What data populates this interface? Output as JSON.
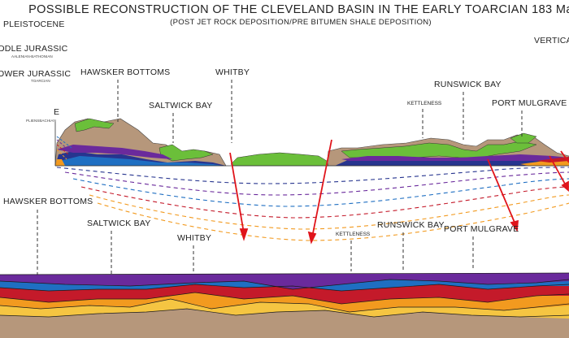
{
  "title": "POSSIBLE RECONSTRUCTION OF THE CLEVELAND BASIN IN THE EARLY TOARCIAN 183 Ma",
  "subtitle": "(POST JET ROCK DEPOSITION/PRE BITUMEN SHALE DEPOSITION)",
  "legend": {
    "pleistocene": "PLEISTOCENE",
    "middle_jurassic": "DDLE JURASSIC",
    "middle_jurassic_sub": "AALENIAN-BATHONIAN",
    "lower_jurassic": "OWER JURASSIC",
    "lower_jurassic_sub": "TOARCIAN",
    "e_mark": "E",
    "pliensbachian": "PLIENSBACHIAN",
    "vertical": "VERTICAL"
  },
  "upper_section_labels": {
    "hawsker_bottoms": "HAWSKER BOTTOMS",
    "whitby": "WHITBY",
    "saltwick_bay": "SALTWICK BAY",
    "runswick_bay": "RUNSWICK BAY",
    "kettleness": "KETTLENESS",
    "port_mulgrave": "PORT MULGRAVE"
  },
  "lower_section_labels": {
    "hawsker_bottoms": "HAWSKER BOTTOMS",
    "saltwick_bay": "SALTWICK BAY",
    "whitby": "WHITBY",
    "kettleness": "KETTLENESS",
    "runswick_bay": "RUNSWICK BAY",
    "port_mulgrave": "PORT MULGRAVE"
  },
  "colors": {
    "purple": "#6a2a9c",
    "blue": "#1f6fc2",
    "red": "#c41a2a",
    "orange": "#f29a1f",
    "yellow": "#f5c542",
    "tan": "#b6977b",
    "green": "#6bbf3a",
    "navy": "#27358f",
    "fault": "#e0141b"
  }
}
